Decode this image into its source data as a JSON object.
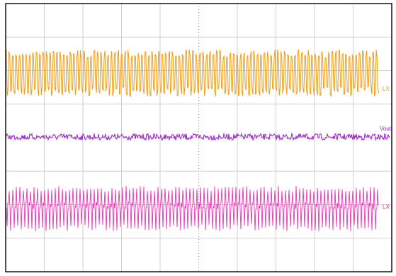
{
  "traces": [
    {
      "label": "LX",
      "color": "#f39a12"
    },
    {
      "label": "Vout",
      "color": "#9a1fc9"
    },
    {
      "label": "LX",
      "color": "#e81fae"
    }
  ]
}
